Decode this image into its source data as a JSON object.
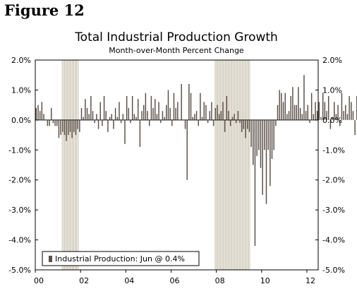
{
  "figure_label": "Figure 12",
  "chart_data": {
    "type": "bar",
    "title": "Total Industrial Production Growth",
    "subtitle": "Month-over-Month Percent Change",
    "legend": {
      "label": "Industrial Production: Jun @ 0.4%",
      "placement": "bottom-left"
    },
    "ylim": [
      -5,
      2
    ],
    "y_ticks": [
      2,
      1,
      0,
      -1,
      -2,
      -3,
      -4,
      -5
    ],
    "y_tick_labels": [
      "2.0%",
      "1.0%",
      "0.0%",
      "-1.0%",
      "-2.0%",
      "-3.0%",
      "-4.0%",
      "-5.0%"
    ],
    "x_start": 2000.0,
    "x_end": 2012.5,
    "x_ticks": [
      2000,
      2002,
      2004,
      2006,
      2008,
      2010,
      2012
    ],
    "x_tick_labels": [
      "00",
      "02",
      "04",
      "06",
      "08",
      "10",
      "12"
    ],
    "recessions": [
      {
        "start": 2001.17,
        "end": 2001.92
      },
      {
        "start": 2007.92,
        "end": 2009.5
      }
    ],
    "series": [
      {
        "name": "Industrial Production",
        "start": "2000-01",
        "color": "#5a5048",
        "values": [
          0.4,
          0.5,
          0.3,
          0.6,
          0.2,
          0.0,
          -0.2,
          -0.2,
          0.4,
          -0.1,
          -0.2,
          -0.2,
          -0.6,
          -0.5,
          -0.4,
          -0.5,
          -0.7,
          -0.5,
          -0.4,
          -0.6,
          -0.4,
          -0.5,
          -0.3,
          -0.4,
          0.4,
          0.1,
          0.7,
          0.4,
          0.2,
          0.8,
          0.3,
          -0.1,
          0.2,
          -0.3,
          0.6,
          -0.2,
          0.8,
          0.3,
          -0.4,
          0.1,
          0.2,
          -0.3,
          0.4,
          0.1,
          0.6,
          -0.1,
          0.2,
          -0.8,
          0.8,
          0.4,
          -0.1,
          0.8,
          0.2,
          0.1,
          0.7,
          -0.9,
          0.3,
          0.5,
          0.9,
          0.3,
          -0.2,
          0.8,
          0.4,
          0.7,
          0.2,
          0.6,
          -0.1,
          0.3,
          0.1,
          0.5,
          1.0,
          0.4,
          -0.2,
          0.9,
          0.4,
          0.6,
          0.0,
          1.2,
          0.0,
          -0.3,
          -2.0,
          1.2,
          0.9,
          0.1,
          0.2,
          0.3,
          -0.2,
          0.9,
          0.1,
          0.6,
          0.5,
          -0.1,
          0.3,
          0.6,
          -0.2,
          0.4,
          0.5,
          0.2,
          0.3,
          0.6,
          -0.4,
          0.8,
          0.3,
          -0.2,
          0.1,
          0.2,
          -0.1,
          0.3,
          -0.1,
          -0.4,
          -0.3,
          -0.6,
          -0.3,
          -0.4,
          -0.9,
          -1.5,
          -4.2,
          -1.2,
          -1.0,
          -1.6,
          -2.5,
          -1.0,
          -2.8,
          -1.0,
          -2.2,
          -1.3,
          -1.0,
          -0.2,
          0.5,
          1.0,
          0.9,
          0.6,
          0.9,
          0.2,
          0.3,
          0.8,
          1.1,
          0.5,
          0.5,
          1.1,
          0.4,
          0.2,
          1.5,
          0.3,
          0.5,
          -0.1,
          0.9,
          0.2,
          0.6,
          0.3,
          0.6,
          0.1,
          0.9,
          0.6,
          0.3,
          0.8,
          -0.3,
          0.1,
          0.6,
          0.2,
          0.5,
          -0.2,
          0.9,
          0.3,
          0.5,
          0.2,
          0.8,
          0.6,
          0.3,
          -0.5,
          0.8,
          -0.4,
          0.9,
          0.4
        ]
      }
    ]
  }
}
